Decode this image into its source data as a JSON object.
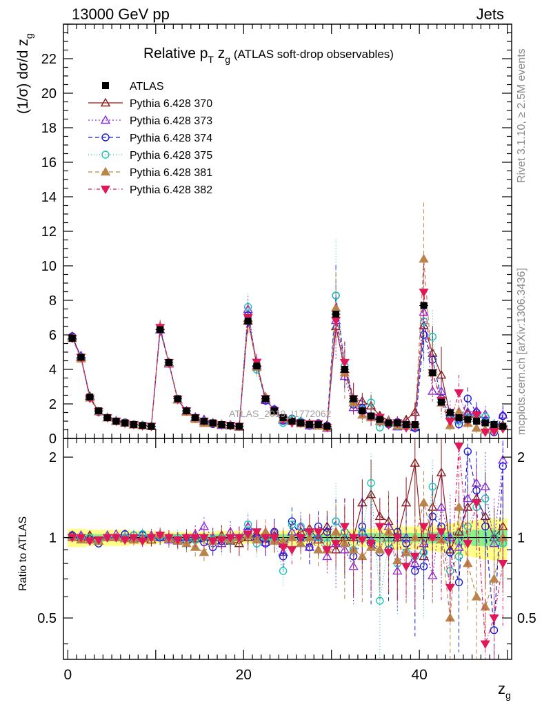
{
  "header": {
    "left": "13000 GeV pp",
    "right": "Jets"
  },
  "side_texts": {
    "rivet": "Rivet 3.1.10, ≥ 2.5M events",
    "mcplots": "mcplots.cern.ch [arXiv:1306.3436]"
  },
  "watermark": "ATLAS_2019_I1772062",
  "chart_data": {
    "type": "line",
    "title": {
      "main": "Relative p",
      "main_sub": "T",
      "var": " z",
      "var_sub": "g",
      "suffix": " (ATLAS soft-drop observables)"
    },
    "ylabel": {
      "pre": "(1/σ) dσ/d z",
      "sub": "g"
    },
    "ratio_ylabel": "Ratio to ATLAS",
    "xlabel": {
      "main": "z",
      "sub": "g"
    },
    "xlim": [
      -0.5,
      50.5
    ],
    "ylim": [
      0,
      24
    ],
    "ratio_ylim": [
      0.35,
      2.35
    ],
    "x_ticks": [
      "0",
      "20",
      "40"
    ],
    "x_tick_values": [
      0,
      20,
      40
    ],
    "y_ticks": [
      "0",
      "2",
      "4",
      "6",
      "8",
      "10",
      "12",
      "14",
      "16",
      "18",
      "20",
      "22"
    ],
    "y_tick_values": [
      0,
      2,
      4,
      6,
      8,
      10,
      12,
      14,
      16,
      18,
      20,
      22
    ],
    "ratio_ticks": [
      "0.5",
      "1",
      "2"
    ],
    "ratio_tick_values": [
      0.5,
      1,
      2
    ],
    "x": [
      0.5,
      1.5,
      2.5,
      3.5,
      4.5,
      5.5,
      6.5,
      7.5,
      8.5,
      9.5,
      10.5,
      11.5,
      12.5,
      13.5,
      14.5,
      15.5,
      16.5,
      17.5,
      18.5,
      19.5,
      20.5,
      21.5,
      22.5,
      23.5,
      24.5,
      25.5,
      26.5,
      27.5,
      28.5,
      29.5,
      30.5,
      31.5,
      32.5,
      33.5,
      34.5,
      35.5,
      36.5,
      37.5,
      38.5,
      39.5,
      40.5,
      41.5,
      42.5,
      43.5,
      44.5,
      45.5,
      46.5,
      47.5,
      48.5,
      49.5
    ],
    "data": {
      "name": "ATLAS",
      "values": [
        5.8,
        4.7,
        2.4,
        1.6,
        1.2,
        1.0,
        0.9,
        0.8,
        0.75,
        0.7,
        6.3,
        4.4,
        2.3,
        1.6,
        1.2,
        1.0,
        0.9,
        0.8,
        0.75,
        0.7,
        6.8,
        4.2,
        2.3,
        1.6,
        1.2,
        1.0,
        0.9,
        0.8,
        0.8,
        0.7,
        7.2,
        4.0,
        2.3,
        1.6,
        1.3,
        1.1,
        0.9,
        0.9,
        0.8,
        0.8,
        7.7,
        3.8,
        2.1,
        1.5,
        1.2,
        1.1,
        1.0,
        0.9,
        0.8,
        0.7
      ]
    },
    "series": [
      {
        "name": "Pythia 6.428 370",
        "color": "#8b1a1a",
        "marker": "triangle-open",
        "dash": "",
        "ratios": [
          1.02,
          1.0,
          1.02,
          0.97,
          1.0,
          1.0,
          0.99,
          0.99,
          0.99,
          0.98,
          1.0,
          1.0,
          0.98,
          0.98,
          0.99,
          1.0,
          1.0,
          1.02,
          0.97,
          0.95,
          1.0,
          1.03,
          0.99,
          1.02,
          0.95,
          1.0,
          1.05,
          1.08,
          0.98,
          1.1,
          0.9,
          1.0,
          1.0,
          1.35,
          1.45,
          1.2,
          1.15,
          1.0,
          1.35,
          1.9,
          0.85,
          1.3,
          1.75,
          0.9,
          1.05,
          1.3,
          1.4,
          1.2,
          1.0,
          1.1
        ]
      },
      {
        "name": "Pythia 6.428 373",
        "color": "#8a2be2",
        "marker": "triangle-open",
        "dash": "2,3",
        "ratios": [
          1.0,
          1.02,
          0.98,
          0.97,
          1.02,
          1.03,
          1.0,
          0.98,
          1.0,
          1.02,
          1.0,
          0.98,
          0.97,
          1.0,
          1.03,
          1.1,
          1.0,
          0.95,
          1.05,
          1.0,
          1.1,
          1.0,
          0.96,
          1.05,
          0.88,
          1.05,
          1.1,
          0.92,
          1.0,
          0.85,
          0.95,
          0.9,
          0.78,
          1.05,
          0.98,
          0.9,
          1.1,
          0.75,
          1.0,
          0.8,
          0.95,
          0.72,
          1.3,
          1.0,
          0.92,
          1.4,
          1.6,
          1.55,
          0.95,
          1.95
        ]
      },
      {
        "name": "Pythia 6.428 374",
        "color": "#1a1ad6",
        "marker": "circle-open",
        "dash": "6,4",
        "ratios": [
          1.02,
          1.0,
          0.98,
          0.95,
          1.0,
          1.0,
          1.03,
          1.02,
          1.02,
          1.0,
          1.0,
          0.99,
          0.98,
          0.97,
          0.98,
          0.96,
          0.92,
          0.97,
          0.98,
          1.0,
          1.05,
          1.0,
          0.95,
          1.05,
          0.85,
          1.15,
          1.0,
          0.92,
          1.1,
          1.05,
          1.15,
          1.05,
          0.85,
          1.1,
          0.95,
          0.88,
          0.9,
          1.05,
          0.95,
          0.75,
          0.78,
          1.2,
          1.1,
          0.88,
          0.68,
          2.1,
          1.5,
          1.1,
          0.45,
          1.85
        ]
      },
      {
        "name": "Pythia 6.428 375",
        "color": "#19c4b4",
        "marker": "circle-open",
        "dash": "1,3",
        "ratios": [
          1.0,
          1.0,
          1.0,
          0.97,
          1.0,
          1.0,
          1.0,
          1.02,
          1.03,
          1.0,
          1.01,
          1.0,
          1.0,
          0.98,
          0.98,
          1.0,
          0.98,
          1.0,
          0.97,
          1.0,
          1.12,
          0.95,
          1.0,
          0.98,
          0.75,
          1.12,
          1.1,
          1.05,
          1.0,
          0.95,
          1.15,
          1.05,
          0.9,
          1.05,
          1.6,
          0.58,
          0.95,
          0.8,
          0.88,
          0.85,
          0.88,
          1.55,
          1.0,
          0.75,
          0.85,
          1.1,
          1.3,
          1.4,
          1.0,
          0.95
        ]
      },
      {
        "name": "Pythia 6.428 381",
        "color": "#b8864b",
        "marker": "triangle-filled",
        "dash": "6,4",
        "ratios": [
          1.0,
          0.98,
          0.98,
          0.97,
          1.0,
          1.0,
          0.99,
          0.98,
          0.99,
          1.0,
          1.03,
          0.99,
          0.97,
          0.95,
          0.92,
          0.88,
          0.97,
          1.0,
          0.98,
          1.0,
          1.02,
          0.98,
          1.05,
          0.97,
          0.97,
          1.0,
          0.95,
          1.0,
          0.9,
          0.9,
          1.05,
          0.95,
          0.9,
          0.85,
          0.92,
          0.9,
          1.05,
          0.82,
          0.88,
          1.0,
          1.35,
          1.0,
          0.98,
          0.5,
          1.3,
          0.8,
          0.6,
          0.55,
          0.7,
          1.0
        ]
      },
      {
        "name": "Pythia 6.428 382",
        "color": "#e0185a",
        "marker": "triangle-down-filled",
        "dash": "5,3,1,3",
        "ratios": [
          1.0,
          1.0,
          0.97,
          0.98,
          1.0,
          1.0,
          0.98,
          1.0,
          0.97,
          1.0,
          1.02,
          1.0,
          0.98,
          1.0,
          1.0,
          1.0,
          0.97,
          0.98,
          1.0,
          1.0,
          1.03,
          1.05,
          1.0,
          1.0,
          0.92,
          0.9,
          1.0,
          1.05,
          1.05,
          0.9,
          0.95,
          1.1,
          1.0,
          0.98,
          0.95,
          1.1,
          0.88,
          1.0,
          0.78,
          0.85,
          1.1,
          1.0,
          1.05,
          0.65,
          2.2,
          0.95,
          1.35,
          0.4,
          0.5,
          0.8
        ]
      }
    ],
    "bands": {
      "yellow": [
        0.08,
        0.08,
        0.07,
        0.07,
        0.07,
        0.07,
        0.07,
        0.06,
        0.06,
        0.06,
        0.05,
        0.05,
        0.05,
        0.05,
        0.05,
        0.05,
        0.05,
        0.06,
        0.06,
        0.06,
        0.05,
        0.05,
        0.05,
        0.06,
        0.06,
        0.07,
        0.07,
        0.07,
        0.07,
        0.07,
        0.06,
        0.07,
        0.07,
        0.08,
        0.08,
        0.09,
        0.09,
        0.1,
        0.1,
        0.1,
        0.1,
        0.11,
        0.12,
        0.13,
        0.14,
        0.15,
        0.16,
        0.17,
        0.18,
        0.18
      ],
      "green": [
        0.03,
        0.03,
        0.03,
        0.03,
        0.03,
        0.03,
        0.03,
        0.03,
        0.03,
        0.03,
        0.03,
        0.03,
        0.03,
        0.03,
        0.03,
        0.03,
        0.03,
        0.03,
        0.03,
        0.03,
        0.03,
        0.03,
        0.03,
        0.03,
        0.03,
        0.03,
        0.03,
        0.03,
        0.03,
        0.03,
        0.03,
        0.03,
        0.03,
        0.04,
        0.04,
        0.04,
        0.04,
        0.04,
        0.04,
        0.04,
        0.04,
        0.05,
        0.05,
        0.05,
        0.06,
        0.06,
        0.07,
        0.07,
        0.07,
        0.07
      ]
    },
    "colors": {
      "band_yellow": "#ffff88",
      "band_green": "#88f088"
    }
  }
}
